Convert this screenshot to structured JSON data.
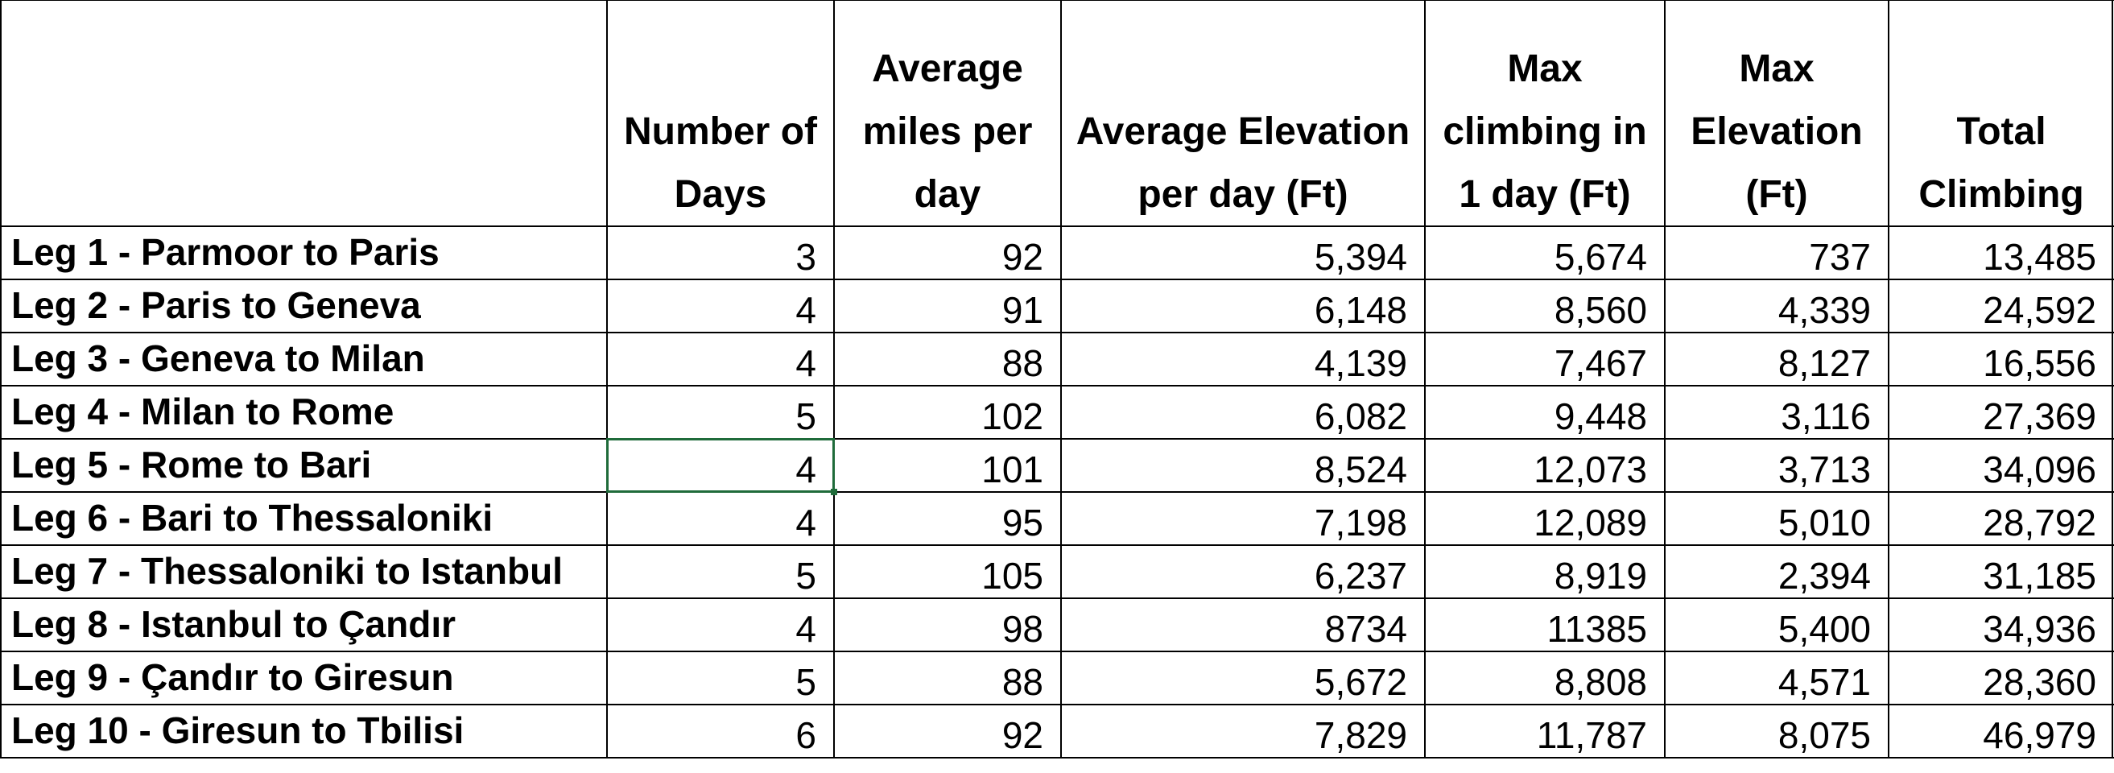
{
  "headers": [
    [
      ""
    ],
    [
      "Number of",
      "Days"
    ],
    [
      "Average",
      "miles per",
      "day"
    ],
    [
      "Average Elevation",
      "per day (Ft)"
    ],
    [
      "Max",
      "climbing in",
      "1 day (Ft)"
    ],
    [
      "Max",
      "Elevation",
      "(Ft)"
    ],
    [
      "Total",
      "Climbing"
    ]
  ],
  "rows": [
    [
      "Leg 1 - Parmoor to Paris",
      "3",
      "92",
      "5,394",
      "5,674",
      "737",
      "13,485"
    ],
    [
      "Leg 2 - Paris to Geneva",
      "4",
      "91",
      "6,148",
      "8,560",
      "4,339",
      "24,592"
    ],
    [
      "Leg 3 - Geneva to Milan",
      "4",
      "88",
      "4,139",
      "7,467",
      "8,127",
      "16,556"
    ],
    [
      "Leg 4 - Milan to Rome",
      "5",
      "102",
      "6,082",
      "9,448",
      "3,116",
      "27,369"
    ],
    [
      "Leg 5 - Rome to Bari",
      "4",
      "101",
      "8,524",
      "12,073",
      "3,713",
      "34,096"
    ],
    [
      "Leg 6 - Bari to Thessaloniki",
      "4",
      "95",
      "7,198",
      "12,089",
      "5,010",
      "28,792"
    ],
    [
      "Leg 7 - Thessaloniki to Istanbul",
      "5",
      "105",
      "6,237",
      "8,919",
      "2,394",
      "31,185"
    ],
    [
      "Leg 8 - Istanbul to Çandır",
      "4",
      "98",
      "8734",
      "11385",
      "5,400",
      "34,936"
    ],
    [
      "Leg 9 - Çandır to Giresun",
      "5",
      "88",
      "5,672",
      "8,808",
      "4,571",
      "28,360"
    ],
    [
      "Leg 10 - Giresun to Tbilisi",
      "6",
      "92",
      "7,829",
      "11,787",
      "8,075",
      "46,979"
    ]
  ],
  "selected_cell": {
    "row": 4,
    "col": 1
  },
  "colors": {
    "grid": "#000000",
    "selection": "#1f6b3a",
    "background": "#ffffff"
  }
}
